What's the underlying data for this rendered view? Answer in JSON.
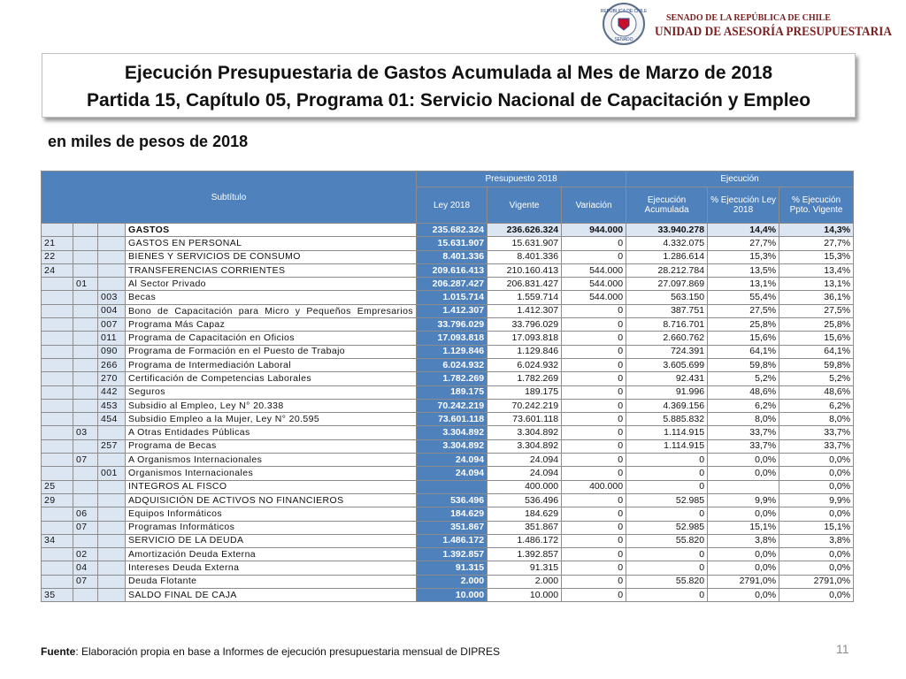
{
  "header": {
    "seal_top": "REPÚBLICA DE CHILE",
    "seal_bottom": "SENADO",
    "org_line1": "SENADO DE LA REPÚBLICA DE CHILE",
    "org_line2": "UNIDAD DE ASESORÍA PRESUPUESTARIA"
  },
  "title": {
    "line1": "Ejecución Presupuestaria de Gastos Acumulada al Mes de Marzo de 2018",
    "line2": "Partida 15, Capítulo 05, Programa 01: Servicio Nacional de Capacitación y Empleo"
  },
  "subtitle": "en miles de pesos de 2018",
  "table": {
    "header": {
      "subtitulo": "Subtítulo",
      "presupuesto": "Presupuesto 2018",
      "ejecucion": "Ejecución",
      "columns": [
        "Ley 2018",
        "Vigente",
        "Variación",
        "Ejecución Acumulada",
        "% Ejecución Ley 2018",
        "% Ejecución Ppto. Vigente"
      ]
    },
    "rows": [
      [
        null,
        null,
        null,
        "GASTOS",
        "235.682.324",
        "236.626.324",
        "944.000",
        "33.940.278",
        "14,4%",
        "14,3%"
      ],
      [
        "21",
        null,
        null,
        "GASTOS EN PERSONAL",
        "15.631.907",
        "15.631.907",
        "0",
        "4.332.075",
        "27,7%",
        "27,7%"
      ],
      [
        "22",
        null,
        null,
        "BIENES Y SERVICIOS DE CONSUMO",
        "8.401.336",
        "8.401.336",
        "0",
        "1.286.614",
        "15,3%",
        "15,3%"
      ],
      [
        "24",
        null,
        null,
        "TRANSFERENCIAS CORRIENTES",
        "209.616.413",
        "210.160.413",
        "544.000",
        "28.212.784",
        "13,5%",
        "13,4%"
      ],
      [
        null,
        "01",
        null,
        "Al Sector Privado",
        "206.287.427",
        "206.831.427",
        "544.000",
        "27.097.869",
        "13,1%",
        "13,1%"
      ],
      [
        null,
        null,
        "003",
        "Becas",
        "1.015.714",
        "1.559.714",
        "544.000",
        "563.150",
        "55,4%",
        "36,1%"
      ],
      [
        null,
        null,
        "004",
        "Bono de Capacitación para Micro y Pequeños Empresarios",
        "1.412.307",
        "1.412.307",
        "0",
        "387.751",
        "27,5%",
        "27,5%"
      ],
      [
        null,
        null,
        "007",
        "Programa Más Capaz",
        "33.796.029",
        "33.796.029",
        "0",
        "8.716.701",
        "25,8%",
        "25,8%"
      ],
      [
        null,
        null,
        "011",
        "Programa de Capacitación en Oficios",
        "17.093.818",
        "17.093.818",
        "0",
        "2.660.762",
        "15,6%",
        "15,6%"
      ],
      [
        null,
        null,
        "090",
        "Programa de Formación en el Puesto de Trabajo",
        "1.129.846",
        "1.129.846",
        "0",
        "724.391",
        "64,1%",
        "64,1%"
      ],
      [
        null,
        null,
        "266",
        "Programa de Intermediación Laboral",
        "6.024.932",
        "6.024.932",
        "0",
        "3.605.699",
        "59,8%",
        "59,8%"
      ],
      [
        null,
        null,
        "270",
        "Certificación de Competencias Laborales",
        "1.782.269",
        "1.782.269",
        "0",
        "92.431",
        "5,2%",
        "5,2%"
      ],
      [
        null,
        null,
        "442",
        "Seguros",
        "189.175",
        "189.175",
        "0",
        "91.996",
        "48,6%",
        "48,6%"
      ],
      [
        null,
        null,
        "453",
        "Subsidio al Empleo, Ley N° 20.338",
        "70.242.219",
        "70.242.219",
        "0",
        "4.369.156",
        "6,2%",
        "6,2%"
      ],
      [
        null,
        null,
        "454",
        "Subsidio Empleo a la Mujer, Ley N° 20.595",
        "73.601.118",
        "73.601.118",
        "0",
        "5.885.832",
        "8,0%",
        "8,0%"
      ],
      [
        null,
        "03",
        null,
        "A Otras Entidades Públicas",
        "3.304.892",
        "3.304.892",
        "0",
        "1.114.915",
        "33,7%",
        "33,7%"
      ],
      [
        null,
        null,
        "257",
        "Programa de Becas",
        "3.304.892",
        "3.304.892",
        "0",
        "1.114.915",
        "33,7%",
        "33,7%"
      ],
      [
        null,
        "07",
        null,
        "A Organismos Internacionales",
        "24.094",
        "24.094",
        "0",
        "0",
        "0,0%",
        "0,0%"
      ],
      [
        null,
        null,
        "001",
        "Organismos Internacionales",
        "24.094",
        "24.094",
        "0",
        "0",
        "0,0%",
        "0,0%"
      ],
      [
        "25",
        null,
        null,
        "INTEGROS AL FISCO",
        null,
        "400.000",
        "400.000",
        "0",
        null,
        "0,0%"
      ],
      [
        "29",
        null,
        null,
        "ADQUISICIÓN DE ACTIVOS NO FINANCIEROS",
        "536.496",
        "536.496",
        "0",
        "52.985",
        "9,9%",
        "9,9%"
      ],
      [
        null,
        "06",
        null,
        "Equipos Informáticos",
        "184.629",
        "184.629",
        "0",
        "0",
        "0,0%",
        "0,0%"
      ],
      [
        null,
        "07",
        null,
        "Programas Informáticos",
        "351.867",
        "351.867",
        "0",
        "52.985",
        "15,1%",
        "15,1%"
      ],
      [
        "34",
        null,
        null,
        "SERVICIO DE LA DEUDA",
        "1.486.172",
        "1.486.172",
        "0",
        "55.820",
        "3,8%",
        "3,8%"
      ],
      [
        null,
        "02",
        null,
        "Amortización Deuda Externa",
        "1.392.857",
        "1.392.857",
        "0",
        "0",
        "0,0%",
        "0,0%"
      ],
      [
        null,
        "04",
        null,
        "Intereses Deuda Externa",
        "91.315",
        "91.315",
        "0",
        "0",
        "0,0%",
        "0,0%"
      ],
      [
        null,
        "07",
        null,
        "Deuda Flotante",
        "2.000",
        "2.000",
        "0",
        "55.820",
        "2791,0%",
        "2791,0%"
      ],
      [
        "35",
        null,
        null,
        "SALDO FINAL DE CAJA",
        "10.000",
        "10.000",
        "0",
        "0",
        "0,0%",
        "0,0%"
      ]
    ]
  },
  "footer": {
    "source_label": "Fuente",
    "source_text": ": Elaboración propia en base  a Informes de ejecución presupuestaria mensual de DIPRES",
    "page_number": "11"
  }
}
